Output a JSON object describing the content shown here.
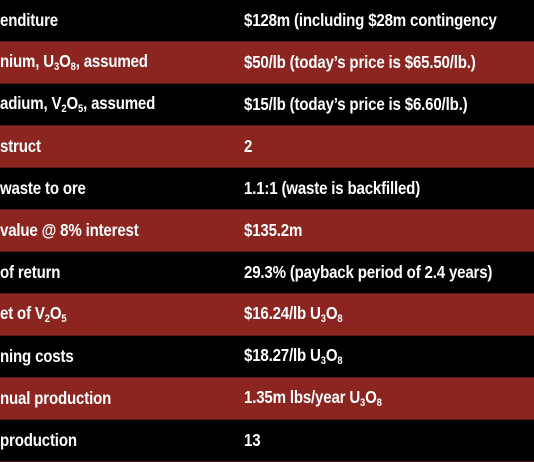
{
  "rows": [
    {
      "style": "dark",
      "label": "enditure",
      "value": "$128m (including $28m contingency"
    },
    {
      "style": "red",
      "label": "nium, U3O8, assumed",
      "value": "$50/lb (today’s price is $65.50/lb.)"
    },
    {
      "style": "dark",
      "label": "adium, V2O5, assumed",
      "value": "$15/lb (today’s price is $6.60/lb.)"
    },
    {
      "style": "red",
      "label": "struct",
      "value": "2"
    },
    {
      "style": "dark",
      "label": "waste to ore",
      "value": "1.1:1 (waste is backfilled)"
    },
    {
      "style": "red",
      "label": "value @ 8% interest",
      "value": "$135.2m"
    },
    {
      "style": "dark",
      "label": "of return",
      "value": "29.3% (payback period of 2.4 years)"
    },
    {
      "style": "red",
      "label": "et of V2O5",
      "value": "$16.24/lb U3O8"
    },
    {
      "style": "dark",
      "label": "ning costs",
      "value": "$18.27/lb U3O8"
    },
    {
      "style": "red",
      "label": "nual production",
      "value": "1.35m lbs/year U3O8"
    },
    {
      "style": "dark",
      "label": "production",
      "value": "13"
    }
  ],
  "colors": {
    "dark_row": "#000000",
    "red_row": "#8c2520",
    "text": "#ffffff"
  }
}
